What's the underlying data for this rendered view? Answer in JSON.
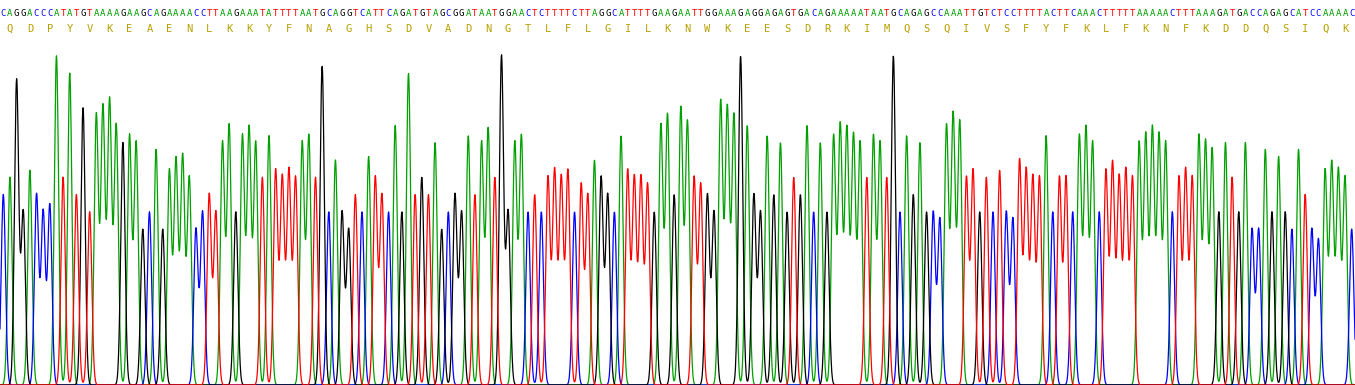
{
  "chart_data": {
    "type": "chromatogram",
    "sequence": "CAGGACCCATATGTAAAAGAAGCAGAAAACCTTAAGAAATATTTTAATGCAGGTCATTCAGATGTAGCGGATAATGGAACTCTTTTCTTAGGCATTTTGAAGAATTGGAAAGAGGAGAGTGACAGAAAAATAATGCAGAGCCAAATTGTCTCCTTTTACTTCAAACTTTTTAAAAACTTTAAAGATGACCAGAGCATCCAAAAC",
    "translation": [
      "Q",
      "D",
      "P",
      "Y",
      "V",
      "K",
      "E",
      "A",
      "E",
      "N",
      "L",
      "K",
      "K",
      "Y",
      "F",
      "N",
      "A",
      "G",
      "H",
      "S",
      "D",
      "V",
      "A",
      "D",
      "N",
      "G",
      "T",
      "L",
      "F",
      "L",
      "G",
      "I",
      "L",
      "K",
      "N",
      "W",
      "K",
      "E",
      "E",
      "S",
      "D",
      "R",
      "K",
      "I",
      "M",
      "Q",
      "S",
      "Q",
      "I",
      "V",
      "S",
      "F",
      "Y",
      "F",
      "K",
      "L",
      "F",
      "K",
      "N",
      "F",
      "K",
      "D",
      "D",
      "Q",
      "S",
      "I",
      "Q",
      "K"
    ],
    "translation_color": "#b8a000",
    "series": [
      {
        "name": "A",
        "color": "#00a000"
      },
      {
        "name": "C",
        "color": "#0000ff"
      },
      {
        "name": "G",
        "color": "#000000"
      },
      {
        "name": "T",
        "color": "#ff0000"
      }
    ],
    "values": [
      0.55,
      0.6,
      0.88,
      0.5,
      0.62,
      0.55,
      0.5,
      0.52,
      0.95,
      0.6,
      0.9,
      0.55,
      0.8,
      0.5,
      0.78,
      0.8,
      0.82,
      0.75,
      0.7,
      0.72,
      0.7,
      0.45,
      0.5,
      0.68,
      0.45,
      0.62,
      0.65,
      0.66,
      0.6,
      0.45,
      0.5,
      0.55,
      0.5,
      0.7,
      0.75,
      0.5,
      0.72,
      0.74,
      0.7,
      0.6,
      0.72,
      0.62,
      0.6,
      0.62,
      0.6,
      0.7,
      0.72,
      0.6,
      0.92,
      0.5,
      0.65,
      0.5,
      0.45,
      0.55,
      0.5,
      0.66,
      0.6,
      0.55,
      0.5,
      0.75,
      0.5,
      0.9,
      0.55,
      0.6,
      0.55,
      0.7,
      0.45,
      0.5,
      0.55,
      0.5,
      0.72,
      0.55,
      0.7,
      0.74,
      0.6,
      0.95,
      0.5,
      0.7,
      0.72,
      0.5,
      0.55,
      0.5,
      0.6,
      0.62,
      0.6,
      0.62,
      0.5,
      0.58,
      0.55,
      0.65,
      0.6,
      0.55,
      0.5,
      0.72,
      0.62,
      0.6,
      0.6,
      0.58,
      0.5,
      0.75,
      0.78,
      0.55,
      0.8,
      0.76,
      0.6,
      0.58,
      0.55,
      0.5,
      0.82,
      0.8,
      0.78,
      0.95,
      0.75,
      0.55,
      0.5,
      0.72,
      0.55,
      0.7,
      0.5,
      0.6,
      0.55,
      0.75,
      0.5,
      0.7,
      0.5,
      0.72,
      0.75,
      0.74,
      0.72,
      0.7,
      0.6,
      0.72,
      0.7,
      0.6,
      0.95,
      0.5,
      0.72,
      0.55,
      0.7,
      0.5,
      0.5,
      0.48,
      0.75,
      0.78,
      0.76,
      0.6,
      0.62,
      0.5,
      0.6,
      0.5,
      0.62,
      0.5,
      0.48,
      0.65,
      0.62,
      0.6,
      0.6,
      0.72,
      0.5,
      0.6,
      0.6,
      0.5,
      0.72,
      0.74,
      0.7,
      0.5,
      0.62,
      0.64,
      0.6,
      0.62,
      0.6,
      0.7,
      0.72,
      0.74,
      0.72,
      0.7,
      0.5,
      0.6,
      0.62,
      0.6,
      0.72,
      0.7,
      0.68,
      0.5,
      0.7,
      0.6,
      0.5,
      0.7,
      0.45,
      0.45,
      0.68,
      0.5,
      0.66,
      0.5,
      0.45,
      0.68,
      0.55,
      0.45,
      0.42,
      0.62,
      0.64,
      0.62,
      0.6,
      0.45
    ],
    "ylim": [
      0,
      1
    ],
    "tick_labels": false
  }
}
